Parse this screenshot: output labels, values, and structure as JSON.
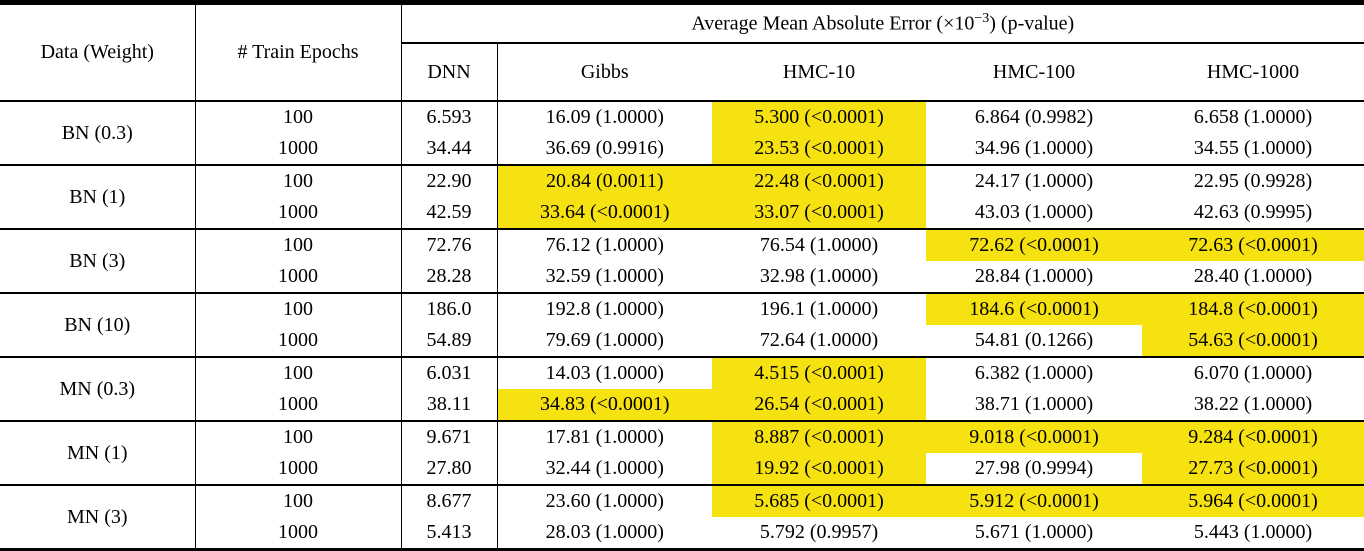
{
  "table": {
    "header": {
      "col1": "Data (Weight)",
      "col2": "# Train Epochs",
      "group_title_prefix": "Average Mean Absolute Error (×10",
      "group_title_sup": "−3",
      "group_title_suffix": ") (p-value)",
      "methods": [
        "DNN",
        "Gibbs",
        "HMC-10",
        "HMC-100",
        "HMC-1000"
      ]
    },
    "groups": [
      {
        "label": "BN (0.3)",
        "rows": [
          {
            "epochs": "100",
            "dnn": "6.593",
            "cells": [
              {
                "text": "16.09 (1.0000)",
                "hl": false
              },
              {
                "text": "5.300 (<0.0001)",
                "hl": true
              },
              {
                "text": "6.864 (0.9982)",
                "hl": false
              },
              {
                "text": "6.658 (1.0000)",
                "hl": false
              }
            ]
          },
          {
            "epochs": "1000",
            "dnn": "34.44",
            "cells": [
              {
                "text": "36.69 (0.9916)",
                "hl": false
              },
              {
                "text": "23.53 (<0.0001)",
                "hl": true
              },
              {
                "text": "34.96 (1.0000)",
                "hl": false
              },
              {
                "text": "34.55 (1.0000)",
                "hl": false
              }
            ]
          }
        ]
      },
      {
        "label": "BN (1)",
        "rows": [
          {
            "epochs": "100",
            "dnn": "22.90",
            "cells": [
              {
                "text": "20.84 (0.0011)",
                "hl": true
              },
              {
                "text": "22.48 (<0.0001)",
                "hl": true
              },
              {
                "text": "24.17 (1.0000)",
                "hl": false
              },
              {
                "text": "22.95 (0.9928)",
                "hl": false
              }
            ]
          },
          {
            "epochs": "1000",
            "dnn": "42.59",
            "cells": [
              {
                "text": "33.64 (<0.0001)",
                "hl": true
              },
              {
                "text": "33.07 (<0.0001)",
                "hl": true
              },
              {
                "text": "43.03 (1.0000)",
                "hl": false
              },
              {
                "text": "42.63 (0.9995)",
                "hl": false
              }
            ]
          }
        ]
      },
      {
        "label": "BN (3)",
        "rows": [
          {
            "epochs": "100",
            "dnn": "72.76",
            "cells": [
              {
                "text": "76.12 (1.0000)",
                "hl": false
              },
              {
                "text": "76.54 (1.0000)",
                "hl": false
              },
              {
                "text": "72.62 (<0.0001)",
                "hl": true
              },
              {
                "text": "72.63 (<0.0001)",
                "hl": true
              }
            ]
          },
          {
            "epochs": "1000",
            "dnn": "28.28",
            "cells": [
              {
                "text": "32.59 (1.0000)",
                "hl": false
              },
              {
                "text": "32.98 (1.0000)",
                "hl": false
              },
              {
                "text": "28.84 (1.0000)",
                "hl": false
              },
              {
                "text": "28.40 (1.0000)",
                "hl": false
              }
            ]
          }
        ]
      },
      {
        "label": "BN (10)",
        "rows": [
          {
            "epochs": "100",
            "dnn": "186.0",
            "cells": [
              {
                "text": "192.8 (1.0000)",
                "hl": false
              },
              {
                "text": "196.1 (1.0000)",
                "hl": false
              },
              {
                "text": "184.6 (<0.0001)",
                "hl": true
              },
              {
                "text": "184.8 (<0.0001)",
                "hl": true
              }
            ]
          },
          {
            "epochs": "1000",
            "dnn": "54.89",
            "cells": [
              {
                "text": "79.69 (1.0000)",
                "hl": false
              },
              {
                "text": "72.64 (1.0000)",
                "hl": false
              },
              {
                "text": "54.81 (0.1266)",
                "hl": false
              },
              {
                "text": "54.63 (<0.0001)",
                "hl": true
              }
            ]
          }
        ]
      },
      {
        "label": "MN (0.3)",
        "rows": [
          {
            "epochs": "100",
            "dnn": "6.031",
            "cells": [
              {
                "text": "14.03 (1.0000)",
                "hl": false
              },
              {
                "text": "4.515 (<0.0001)",
                "hl": true
              },
              {
                "text": "6.382 (1.0000)",
                "hl": false
              },
              {
                "text": "6.070 (1.0000)",
                "hl": false
              }
            ]
          },
          {
            "epochs": "1000",
            "dnn": "38.11",
            "cells": [
              {
                "text": "34.83 (<0.0001)",
                "hl": true
              },
              {
                "text": "26.54 (<0.0001)",
                "hl": true
              },
              {
                "text": "38.71 (1.0000)",
                "hl": false
              },
              {
                "text": "38.22 (1.0000)",
                "hl": false
              }
            ]
          }
        ]
      },
      {
        "label": "MN (1)",
        "rows": [
          {
            "epochs": "100",
            "dnn": "9.671",
            "cells": [
              {
                "text": "17.81 (1.0000)",
                "hl": false
              },
              {
                "text": "8.887 (<0.0001)",
                "hl": true
              },
              {
                "text": "9.018 (<0.0001)",
                "hl": true
              },
              {
                "text": "9.284 (<0.0001)",
                "hl": true
              }
            ]
          },
          {
            "epochs": "1000",
            "dnn": "27.80",
            "cells": [
              {
                "text": "32.44 (1.0000)",
                "hl": false
              },
              {
                "text": "19.92 (<0.0001)",
                "hl": true
              },
              {
                "text": "27.98 (0.9994)",
                "hl": false
              },
              {
                "text": "27.73 (<0.0001)",
                "hl": true
              }
            ]
          }
        ]
      },
      {
        "label": "MN (3)",
        "rows": [
          {
            "epochs": "100",
            "dnn": "8.677",
            "cells": [
              {
                "text": "23.60 (1.0000)",
                "hl": false
              },
              {
                "text": "5.685 (<0.0001)",
                "hl": true
              },
              {
                "text": "5.912 (<0.0001)",
                "hl": true
              },
              {
                "text": "5.964 (<0.0001)",
                "hl": true
              }
            ]
          },
          {
            "epochs": "1000",
            "dnn": "5.413",
            "cells": [
              {
                "text": "28.03 (1.0000)",
                "hl": false
              },
              {
                "text": "5.792 (0.9957)",
                "hl": false
              },
              {
                "text": "5.671 (1.0000)",
                "hl": false
              },
              {
                "text": "5.443 (1.0000)",
                "hl": false
              }
            ]
          }
        ]
      }
    ]
  },
  "colors": {
    "highlight": "#F7E211",
    "rule": "#000000",
    "text": "#000000",
    "background": "#FFFFFF"
  }
}
